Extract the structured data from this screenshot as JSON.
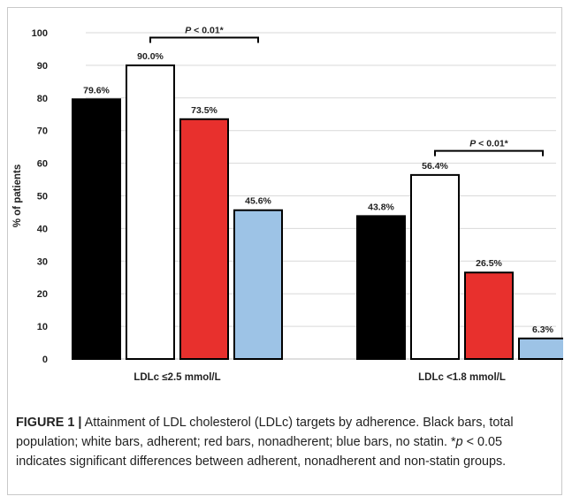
{
  "chart_data": {
    "type": "bar",
    "ylabel": "% of patients",
    "ylim": [
      0,
      100
    ],
    "yticks": [
      "0",
      "10",
      "20",
      "30",
      "40",
      "50",
      "60",
      "70",
      "80",
      "90",
      "100"
    ],
    "grid": true,
    "categories": [
      "LDLc ≤2.5 mmol/L",
      "LDLc <1.8 mmol/L"
    ],
    "series": [
      {
        "values": [
          79.6,
          43.8
        ],
        "labels": [
          "79.6%",
          "43.8%"
        ],
        "color": "#000000"
      },
      {
        "values": [
          90.0,
          56.4
        ],
        "labels": [
          "90.0%",
          "56.4%"
        ],
        "color": "#ffffff"
      },
      {
        "values": [
          73.5,
          26.5
        ],
        "labels": [
          "73.5%",
          "26.5%"
        ],
        "color": "#e8302d"
      },
      {
        "values": [
          45.6,
          6.3
        ],
        "labels": [
          "45.6%",
          "6.3%"
        ],
        "color": "#9dc3e6"
      }
    ],
    "annotations": [
      {
        "text": "P < 0.01*",
        "group": 0,
        "from_series": 1,
        "to_series": 3,
        "value": 98.5
      },
      {
        "text": "P < 0.01*",
        "group": 1,
        "from_series": 1,
        "to_series": 3,
        "value": 63.8
      }
    ]
  },
  "caption": {
    "lead": "FIGURE 1 |",
    "text1": " Attainment of LDL cholesterol (LDLc) targets by adherence. Black bars, total population; white bars, adherent; red bars, nonadherent; blue bars, no statin. *",
    "p": "p",
    "text2": " < 0.05 indicates significant differences between adherent, nonadherent and non-statin groups."
  }
}
